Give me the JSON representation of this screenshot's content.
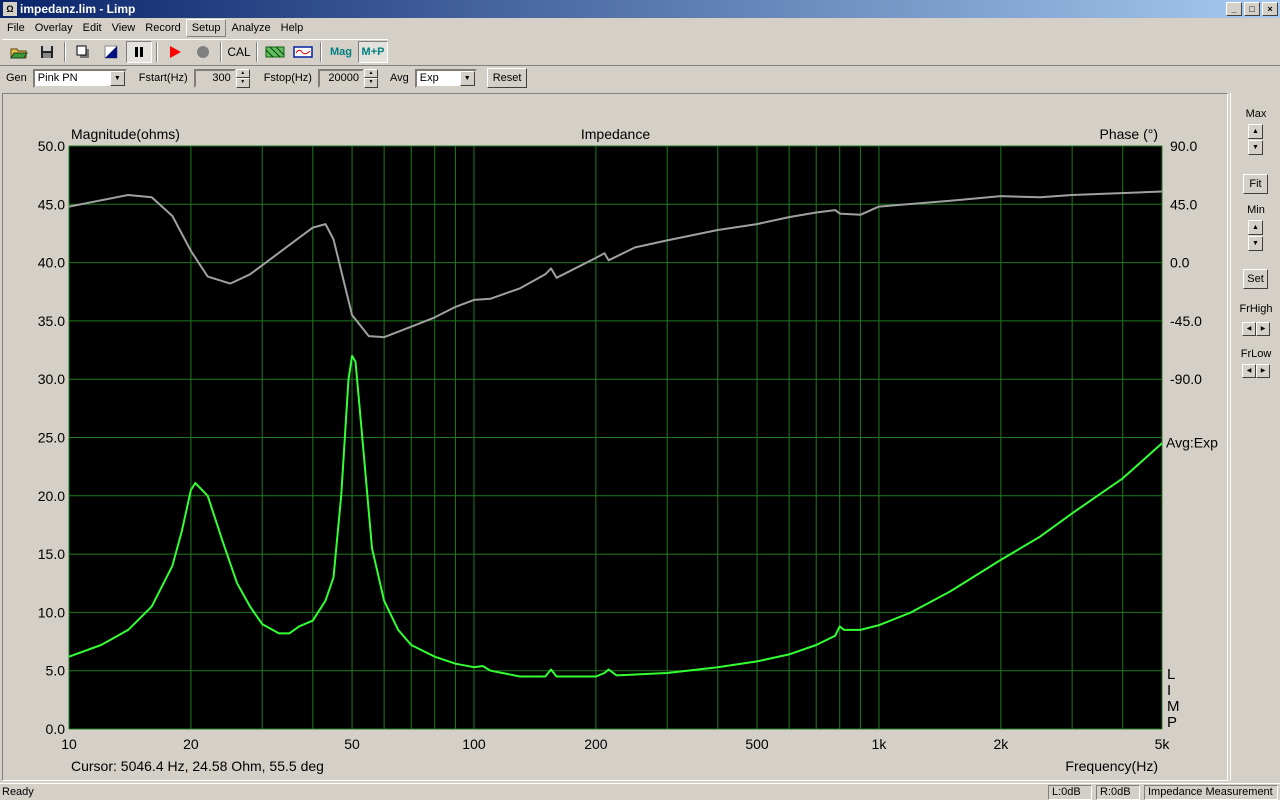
{
  "window": {
    "title": "impedanz.lim - Limp",
    "app_icon": "limp-app-icon",
    "controls": [
      "_",
      "□",
      "×"
    ]
  },
  "menu": [
    "File",
    "Overlay",
    "Edit",
    "View",
    "Record",
    "Setup",
    "Analyze",
    "Help"
  ],
  "toolbar": {
    "icons": [
      "open-folder-icon",
      "save-icon",
      "copy-icon",
      "contrast-icon",
      "pause-icon",
      "play-icon",
      "record-icon",
      "cal-button",
      "grid-icon",
      "waveform-icon",
      "mag-button",
      "mp-button"
    ],
    "cal_label": "CAL",
    "mag_label": "Mag",
    "mp_label": "M+P"
  },
  "params": {
    "gen_label": "Gen",
    "gen_value": "Pink PN",
    "fstart_label": "Fstart(Hz)",
    "fstart_value": "300",
    "fstop_label": "Fstop(Hz)",
    "fstop_value": "20000",
    "avg_label": "Avg",
    "avg_value": "Exp",
    "reset_label": "Reset"
  },
  "right_panel": {
    "max_label": "Max",
    "fit_label": "Fit",
    "min_label": "Min",
    "set_label": "Set",
    "frhigh_label": "FrHigh",
    "frlow_label": "FrLow"
  },
  "status": {
    "ready": "Ready",
    "left": "L:0dB",
    "right": "R:0dB",
    "mode": "Impedance Measurement"
  },
  "chart_data": {
    "type": "line",
    "title": "Impedance",
    "ylabel": "Magnitude(ohms)",
    "y2label": "Phase (°)",
    "xlabel": "Frequency(Hz)",
    "xscale": "log",
    "xlim": [
      10,
      5000
    ],
    "ylim": [
      0,
      50
    ],
    "y2lim": [
      -360,
      90
    ],
    "grid": true,
    "background": "#000000",
    "grid_color": "#1f7a1f",
    "xticks": [
      "10",
      "20",
      "50",
      "100",
      "200",
      "500",
      "1k",
      "2k",
      "5k"
    ],
    "xtick_values": [
      10,
      20,
      50,
      100,
      200,
      500,
      1000,
      2000,
      5000
    ],
    "yticks": [
      "0.0",
      "5.0",
      "10.0",
      "15.0",
      "20.0",
      "25.0",
      "30.0",
      "35.0",
      "40.0",
      "45.0",
      "50.0"
    ],
    "y2ticks": [
      "90.0",
      "45.0",
      "0.0",
      "-45.0",
      "-90.0"
    ],
    "y2tick_values": [
      90,
      45,
      0,
      -45,
      -90
    ],
    "annotation_avg": "Avg:Exp",
    "watermark": "LIMP",
    "cursor": "Cursor:  5046.4 Hz, 24.58 Ohm, 55.5 deg",
    "series": [
      {
        "name": "Magnitude",
        "color": "#33ff33",
        "axis": "left",
        "x": [
          10,
          12,
          14,
          16,
          18,
          19,
          20,
          20.5,
          22,
          24,
          26,
          28,
          30,
          33,
          35,
          37,
          40,
          43,
          45,
          47,
          49,
          50,
          51,
          53,
          56,
          60,
          65,
          70,
          80,
          90,
          100,
          105,
          110,
          130,
          150,
          155,
          160,
          200,
          210,
          215,
          225,
          300,
          400,
          500,
          600,
          700,
          780,
          800,
          820,
          900,
          1000,
          1200,
          1500,
          2000,
          2500,
          3000,
          4000,
          5000
        ],
        "y": [
          6.2,
          7.2,
          8.5,
          10.5,
          14,
          17,
          20.5,
          21.1,
          20,
          16,
          12.5,
          10.5,
          9,
          8.2,
          8.2,
          8.8,
          9.3,
          11,
          13,
          20,
          30,
          32,
          31.5,
          25,
          15.5,
          11,
          8.5,
          7.2,
          6.2,
          5.6,
          5.3,
          5.4,
          5,
          4.5,
          4.5,
          5.1,
          4.5,
          4.5,
          4.8,
          5.1,
          4.6,
          4.8,
          5.3,
          5.8,
          6.4,
          7.2,
          8,
          8.8,
          8.5,
          8.5,
          8.9,
          10,
          11.8,
          14.5,
          16.5,
          18.5,
          21.5,
          24.5
        ]
      },
      {
        "name": "Phase",
        "color": "#a0a0a0",
        "axis": "right",
        "x": [
          10,
          14,
          16,
          18,
          20,
          22,
          25,
          28,
          32,
          35,
          40,
          43,
          45,
          48,
          50,
          55,
          60,
          70,
          80,
          90,
          100,
          110,
          130,
          150,
          155,
          160,
          200,
          210,
          215,
          250,
          300,
          400,
          500,
          600,
          700,
          780,
          800,
          900,
          1000,
          1500,
          2000,
          2500,
          3000,
          5000
        ],
        "y": [
          43.2,
          52.2,
          50.4,
          36,
          9,
          -10.8,
          -16.2,
          -9,
          4.5,
          13.5,
          27,
          29.7,
          18,
          -18,
          -40.5,
          -56.7,
          -57.6,
          -49.5,
          -42.3,
          -34.2,
          -28.8,
          -27.9,
          -19.8,
          -9,
          -4.5,
          -11.7,
          3.6,
          7.2,
          1.8,
          11.7,
          17.1,
          25.2,
          29.7,
          35.1,
          38.7,
          40.5,
          37.8,
          36.9,
          43.2,
          47.7,
          51.3,
          50.4,
          52.2,
          54.9
        ]
      }
    ]
  }
}
